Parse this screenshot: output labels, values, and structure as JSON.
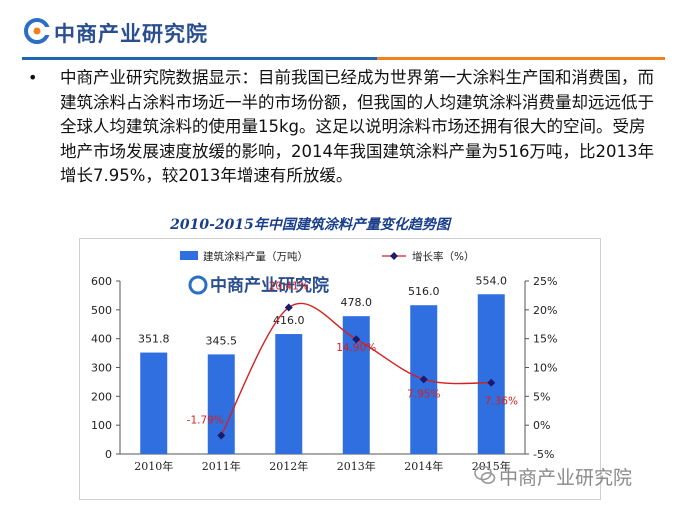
{
  "header": {
    "brand": "中商产业研究院",
    "colors": {
      "rule_left": "#1f67b1",
      "rule_right": "#f08020",
      "logo": "#2a4f8f"
    }
  },
  "body": {
    "bullet": "•",
    "paragraph": "中商产业研究院数据显示：目前我国已经成为世界第一大涂料生产国和消费国，而建筑涂料占涂料市场近一半的市场份额，但我国的人均建筑涂料消费量却远远低于全球人均建筑涂料的使用量15kg。这足以说明涂料市场还拥有很大的空间。受房地产市场发展速度放缓的影响，2014年我国建筑涂料产量为516万吨，比2013年增长7.95%，较2013年增速有所放缓。"
  },
  "chart_data": {
    "type": "bar",
    "title": "2010-2015年中国建筑涂料产量变化趋势图",
    "categories": [
      "2010年",
      "2011年",
      "2012年",
      "2013年",
      "2014年",
      "2015年"
    ],
    "series": [
      {
        "name": "建筑涂料产量（万吨）",
        "type": "bar",
        "axis": "left",
        "values": [
          351.8,
          345.5,
          416.0,
          478.0,
          516.0,
          554.0
        ],
        "labels": [
          "351.8",
          "345.5",
          "416.0",
          "478.0",
          "516.0",
          "554.0"
        ],
        "color": "#2f6fe0"
      },
      {
        "name": "增长率（%）",
        "type": "line",
        "axis": "right",
        "values": [
          null,
          -1.79,
          20.41,
          14.9,
          7.95,
          7.36
        ],
        "labels": [
          "",
          "-1.79%",
          "20.41%",
          "14.90%",
          "7.95%",
          "7.36%"
        ],
        "color": "#d42020",
        "marker_color": "#1a1a6e"
      }
    ],
    "y_left": {
      "lim": [
        0,
        600
      ],
      "ticks": [
        "0",
        "100",
        "200",
        "300",
        "400",
        "500",
        "600"
      ]
    },
    "y_right": {
      "lim": [
        -5,
        25
      ],
      "ticks": [
        "-5%",
        "0%",
        "5%",
        "10%",
        "15%",
        "20%",
        "25%"
      ]
    },
    "legend": "top",
    "grid": false,
    "watermark": "中商产业研究院"
  },
  "footer": {
    "watermark": "中商产业研究院"
  }
}
